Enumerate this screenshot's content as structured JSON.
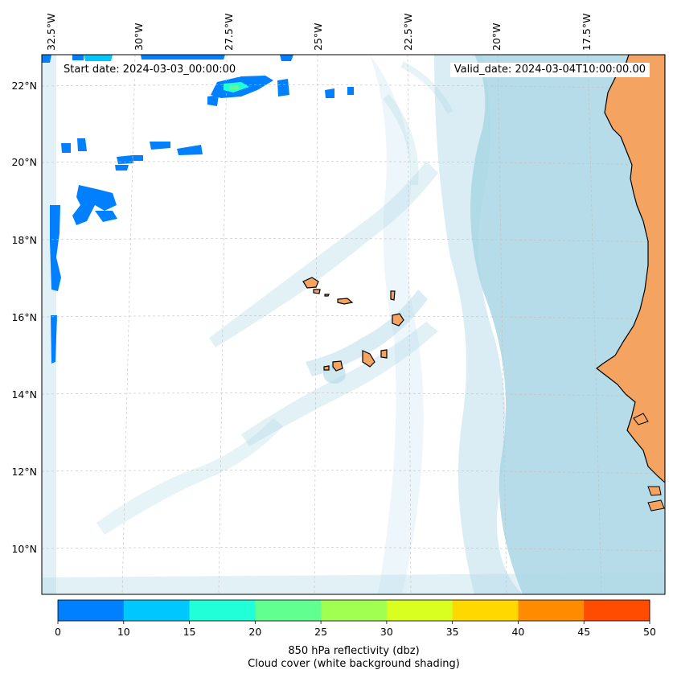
{
  "map": {
    "start_label": "Start date: 2024-03-03_00:00:00",
    "valid_label": "Valid_date: 2024-03-04T10:00:00.00",
    "lon_labels": [
      "32.5°W",
      "30°W",
      "27.5°W",
      "25°W",
      "22.5°W",
      "20°W",
      "17.5°W"
    ],
    "lat_labels": [
      "22°N",
      "20°N",
      "18°N",
      "16°N",
      "14°N",
      "12°N",
      "10°N"
    ],
    "colors": {
      "land": "#f4a460",
      "cloud": "#add8e6",
      "ocean": "#ffffff",
      "coast": "#000000"
    }
  },
  "colorbar": {
    "label_line1": "850 hPa reflectivity (dbz)",
    "label_line2": "Cloud cover (white background shading)",
    "ticks": [
      "0",
      "10",
      "15",
      "20",
      "25",
      "30",
      "35",
      "40",
      "45",
      "50"
    ],
    "colors": [
      "#0080ff",
      "#00c8ff",
      "#20ffd8",
      "#60ff90",
      "#a0ff50",
      "#d8ff20",
      "#ffd800",
      "#ff8c00",
      "#ff4c00"
    ]
  }
}
